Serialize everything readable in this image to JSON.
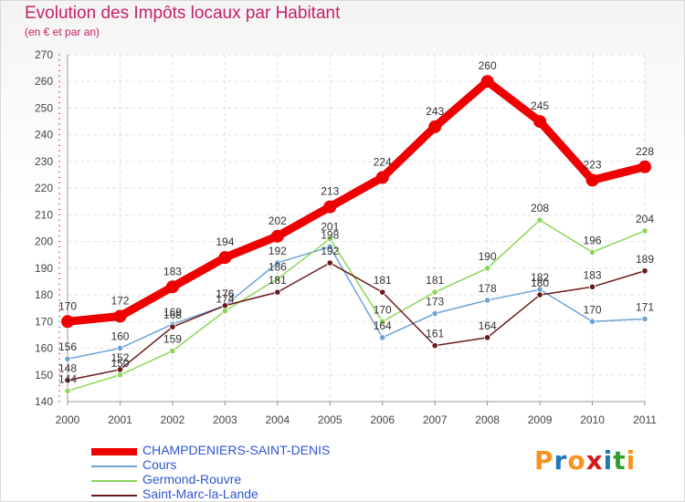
{
  "title": "Evolution des Impôts locaux par Habitant",
  "subtitle": "(en € et par an)",
  "logo": [
    "P",
    "r",
    "o",
    "x",
    "i",
    "t",
    "i"
  ],
  "logo_colors": [
    "#f7931e",
    "#1f78b4",
    "#f7931e",
    "#d7191c",
    "#1f78b4",
    "#33a02c",
    "#f7931e"
  ],
  "chart_data": {
    "type": "line",
    "title": "Evolution des Impôts locaux par Habitant",
    "subtitle": "(en € et par an)",
    "x": [
      "2000",
      "2001",
      "2002",
      "2003",
      "2004",
      "2005",
      "2006",
      "2007",
      "2008",
      "2009",
      "2010",
      "2011"
    ],
    "ylim": [
      140,
      270
    ],
    "yticks": [
      140,
      150,
      160,
      170,
      180,
      190,
      200,
      210,
      220,
      230,
      240,
      250,
      260,
      270
    ],
    "grid": true,
    "legend_position": "bottom-left",
    "series": [
      {
        "name": "CHAMPDENIERS-SAINT-DENIS",
        "color": "#ee0000",
        "values": [
          170,
          172,
          183,
          194,
          202,
          213,
          224,
          243,
          260,
          245,
          223,
          228
        ],
        "labels": [
          "170",
          "172",
          "183",
          "194",
          "202",
          "213",
          "224",
          "243",
          "260",
          "245",
          "223",
          "228"
        ]
      },
      {
        "name": "Cours",
        "color": "#6fa3d6",
        "values": [
          156,
          160,
          169,
          176,
          192,
          198,
          164,
          173,
          178,
          182,
          170,
          171
        ],
        "labels": [
          "156",
          "160",
          "169",
          "176",
          "192",
          "198",
          "164",
          "173",
          "178",
          "182",
          "170",
          "171"
        ]
      },
      {
        "name": "Germond-Rouvre",
        "color": "#8dd55a",
        "values": [
          144,
          150,
          159,
          174,
          186,
          201,
          170,
          181,
          190,
          208,
          196,
          204
        ],
        "labels": [
          "144",
          "150",
          "159",
          "174",
          "186",
          "201",
          "170",
          "181",
          "190",
          "208",
          "196",
          "204"
        ]
      },
      {
        "name": "Saint-Marc-la-Lande",
        "color": "#6b1a1a",
        "values": [
          148,
          152,
          168,
          176,
          181,
          192,
          181,
          161,
          164,
          180,
          183,
          189
        ],
        "labels": [
          "148",
          "152",
          "168",
          "176",
          "181",
          "192",
          "181",
          "161",
          "164",
          "180",
          "183",
          "189"
        ]
      }
    ]
  }
}
